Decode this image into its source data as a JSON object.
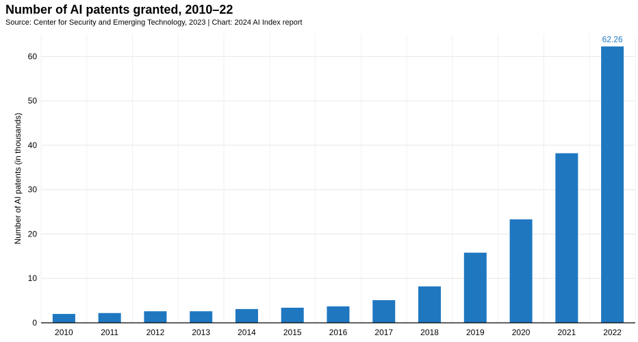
{
  "chart_data": {
    "type": "bar",
    "title": "Number of AI patents granted, 2010–22",
    "subtitle": "Source: Center for Security and Emerging Technology, 2023 | Chart: 2024 AI Index report",
    "xlabel": "",
    "ylabel": "Number of AI patents (in thousands)",
    "categories": [
      "2010",
      "2011",
      "2012",
      "2013",
      "2014",
      "2015",
      "2016",
      "2017",
      "2018",
      "2019",
      "2020",
      "2021",
      "2022"
    ],
    "values": [
      2.0,
      2.2,
      2.6,
      2.6,
      3.1,
      3.4,
      3.7,
      5.1,
      8.2,
      15.8,
      23.3,
      38.2,
      62.26
    ],
    "data_labels": [
      {
        "index": 12,
        "text": "62.26"
      }
    ],
    "ylim": [
      0,
      65
    ],
    "yticks": [
      0,
      10,
      20,
      30,
      40,
      50,
      60
    ],
    "grid": true,
    "bar_color": "#1f77c0"
  }
}
